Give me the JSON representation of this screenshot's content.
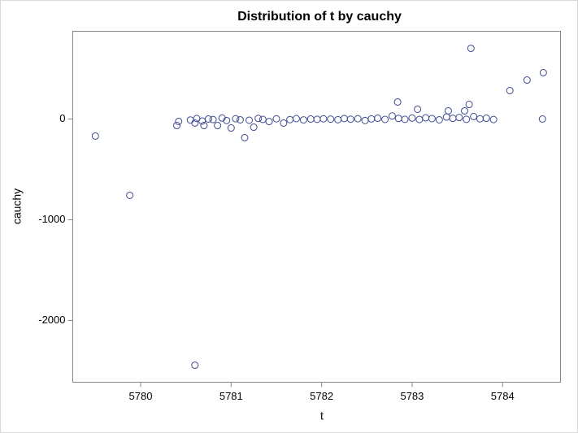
{
  "chart_data": {
    "type": "scatter",
    "title": "Distribution of t by cauchy",
    "x_label": "t",
    "y_label": "cauchy",
    "color": "#3d4a8f",
    "x": [
      5779.5,
      5779.88,
      5780.6,
      5783.65,
      5784.08,
      5784.27,
      5784.45,
      5784.44,
      5782.84,
      5783.06,
      5783.63,
      5783.58,
      5783.4,
      5781.15,
      5781.25,
      5781.0,
      5780.4,
      5780.42,
      5780.6,
      5780.7,
      5780.85,
      5780.55,
      5780.62,
      5780.68,
      5780.75,
      5780.8,
      5780.9,
      5780.95,
      5781.05,
      5781.1,
      5781.2,
      5781.3,
      5781.35,
      5781.42,
      5781.5,
      5781.58,
      5781.65,
      5781.72,
      5781.8,
      5781.88,
      5781.95,
      5782.02,
      5782.1,
      5782.18,
      5782.25,
      5782.32,
      5782.4,
      5782.48,
      5782.55,
      5782.62,
      5782.7,
      5782.78,
      5782.85,
      5782.92,
      5783.0,
      5783.08,
      5783.15,
      5783.22,
      5783.3,
      5783.38,
      5783.45,
      5783.52,
      5783.6,
      5783.68,
      5783.75,
      5783.82,
      5783.9
    ],
    "y": [
      -169,
      -758,
      -2444,
      702,
      282,
      387,
      460,
      0,
      169,
      97,
      145,
      81,
      81,
      -185,
      -81,
      -89,
      -65,
      -24,
      -40,
      -65,
      -65,
      -10,
      5,
      -20,
      0,
      -5,
      10,
      -15,
      3,
      -8,
      -12,
      6,
      -4,
      -25,
      2,
      -40,
      -6,
      4,
      -9,
      0,
      -3,
      2,
      -1,
      -7,
      5,
      -2,
      3,
      -15,
      1,
      8,
      -4,
      30,
      6,
      -3,
      10,
      -5,
      12,
      4,
      -8,
      20,
      7,
      15,
      -3,
      25,
      2,
      8,
      -5
    ],
    "xlim": [
      5779.25,
      5784.64
    ],
    "ylim": [
      -2613,
      871
    ],
    "xticks": [
      5780,
      5781,
      5782,
      5783,
      5784
    ],
    "yticks": [
      -2000,
      -1000,
      0
    ]
  }
}
